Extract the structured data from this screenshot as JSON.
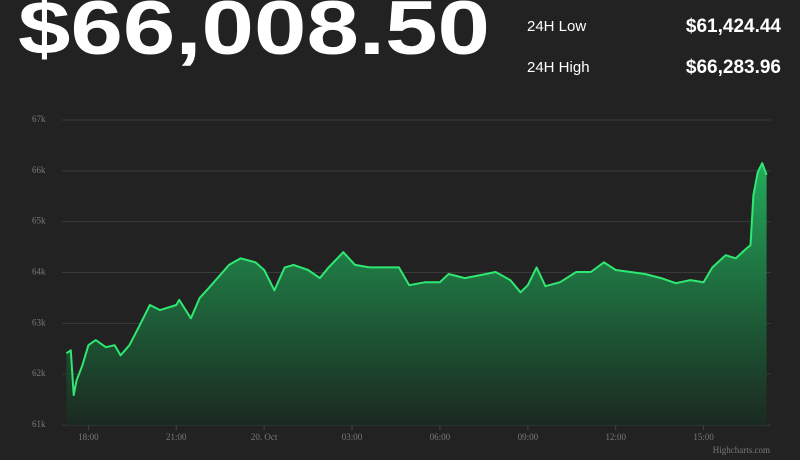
{
  "header": {
    "price": "$66,008.50",
    "stats": [
      {
        "label": "24H Low",
        "value": "$61,424.44"
      },
      {
        "label": "24H High",
        "value": "$66,283.96"
      }
    ]
  },
  "chart_data": {
    "type": "area",
    "x": [
      17.25,
      17.4,
      17.5,
      17.6,
      17.8,
      18.0,
      18.25,
      18.6,
      18.9,
      19.1,
      19.4,
      19.75,
      20.1,
      20.45,
      21.0,
      21.1,
      21.5,
      21.8,
      22.1,
      22.5,
      22.8,
      23.2,
      23.7,
      24.0,
      24.35,
      24.7,
      25.0,
      25.5,
      25.9,
      26.2,
      26.7,
      27.1,
      27.6,
      28.1,
      28.6,
      28.95,
      29.5,
      30.0,
      30.3,
      30.85,
      31.4,
      31.9,
      32.4,
      32.75,
      33.0,
      33.3,
      33.6,
      34.1,
      34.65,
      35.15,
      35.6,
      36.0,
      36.5,
      37.0,
      37.55,
      38.05,
      38.55,
      39.0,
      39.3,
      39.75,
      40.1,
      40.4,
      40.6,
      40.7,
      40.85,
      41.0,
      41.15
    ],
    "series": [
      {
        "color": "#2ee872",
        "values": [
          62410,
          62470,
          61590,
          61880,
          62180,
          62570,
          62670,
          62530,
          62570,
          62370,
          62570,
          62960,
          63360,
          63260,
          63360,
          63460,
          63100,
          63500,
          63690,
          63950,
          64150,
          64280,
          64200,
          64050,
          63650,
          64100,
          64150,
          64050,
          63890,
          64100,
          64400,
          64150,
          64100,
          64100,
          64100,
          63750,
          63810,
          63810,
          63970,
          63890,
          63950,
          64010,
          63850,
          63610,
          63750,
          64100,
          63730,
          63810,
          64010,
          64010,
          64200,
          64050,
          64010,
          63970,
          63890,
          63790,
          63850,
          63810,
          64100,
          64340,
          64280,
          64440,
          64540,
          65520,
          65980,
          66150,
          65920
        ]
      }
    ],
    "xlim": [
      17.1,
      41.3
    ],
    "xticks": [
      {
        "value": 18,
        "label": "18:00"
      },
      {
        "value": 21,
        "label": "21:00"
      },
      {
        "value": 24,
        "label": "20. Oct"
      },
      {
        "value": 27,
        "label": "03:00"
      },
      {
        "value": 30,
        "label": "06:00"
      },
      {
        "value": 33,
        "label": "09:00"
      },
      {
        "value": 36,
        "label": "12:00"
      },
      {
        "value": 39,
        "label": "15:00"
      }
    ],
    "ylim": [
      61000,
      67000
    ],
    "yticks": [
      {
        "value": 61000,
        "label": "61k"
      },
      {
        "value": 62000,
        "label": "62k"
      },
      {
        "value": 63000,
        "label": "63k"
      },
      {
        "value": 64000,
        "label": "64k"
      },
      {
        "value": 65000,
        "label": "65k"
      },
      {
        "value": 66000,
        "label": "66k"
      },
      {
        "value": 67000,
        "label": "67k"
      }
    ],
    "grid": true,
    "credit": "Highcharts.com"
  }
}
